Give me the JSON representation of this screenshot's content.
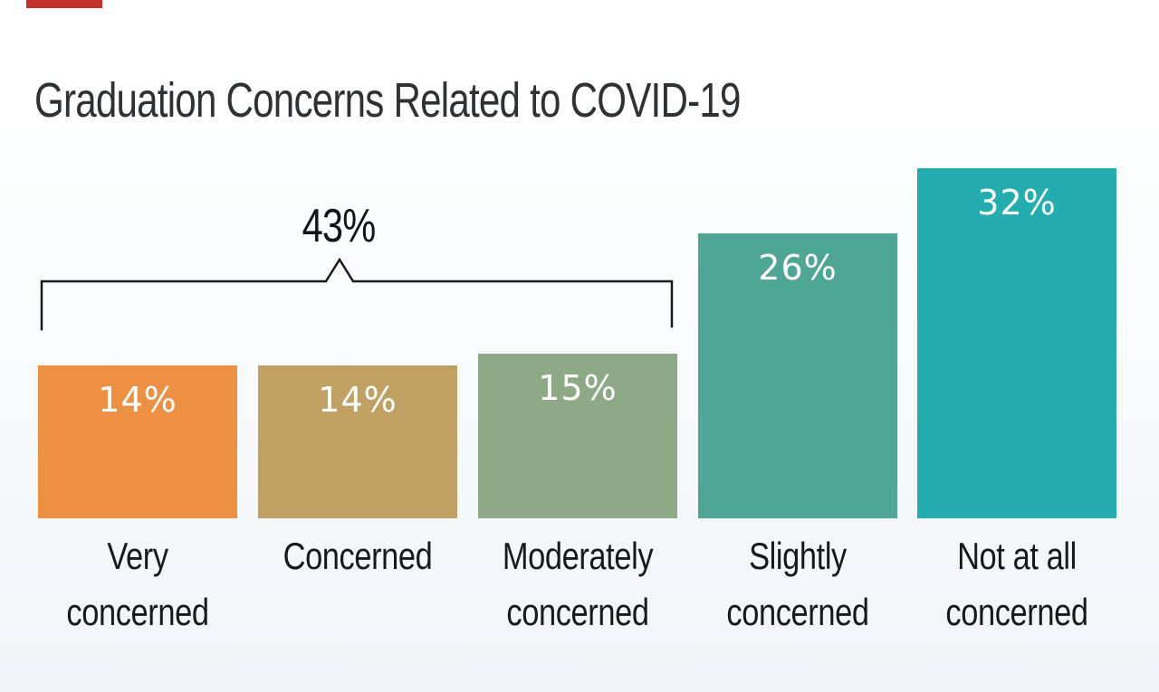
{
  "title": "Graduation Concerns Related to COVID-19",
  "accent": {
    "top_strip_color": "#c1332a"
  },
  "chart_data": {
    "type": "bar",
    "title": "Graduation Concerns Related to COVID-19",
    "categories": [
      "Very concerned",
      "Concerned",
      "Moderately concerned",
      "Slightly concerned",
      "Not at all concerned"
    ],
    "values": [
      14,
      14,
      15,
      26,
      32
    ],
    "unit": "%",
    "xlabel": "",
    "ylabel": "",
    "ylim": [
      0,
      34
    ],
    "grid": false,
    "legend_position": "none",
    "value_labels_inside_bars": true,
    "bars": [
      {
        "label_line1": "Very",
        "label_line2": "concerned",
        "value": 14,
        "value_label": "14%",
        "color": "#ec9144"
      },
      {
        "label_line1": "Concerned",
        "label_line2": "",
        "value": 14,
        "value_label": "14%",
        "color": "#c0a163"
      },
      {
        "label_line1": "Moderately",
        "label_line2": "concerned",
        "value": 15,
        "value_label": "15%",
        "color": "#8ea985"
      },
      {
        "label_line1": "Slightly",
        "label_line2": "concerned",
        "value": 26,
        "value_label": "26%",
        "color": "#4fa694"
      },
      {
        "label_line1": "Not at all",
        "label_line2": "concerned",
        "value": 32,
        "value_label": "32%",
        "color": "#24adae"
      }
    ],
    "annotation": {
      "label": "43%",
      "type": "curly-bracket-span",
      "covers_categories": [
        "Very concerned",
        "Concerned",
        "Moderately concerned"
      ],
      "sum_of_values": 43
    }
  }
}
